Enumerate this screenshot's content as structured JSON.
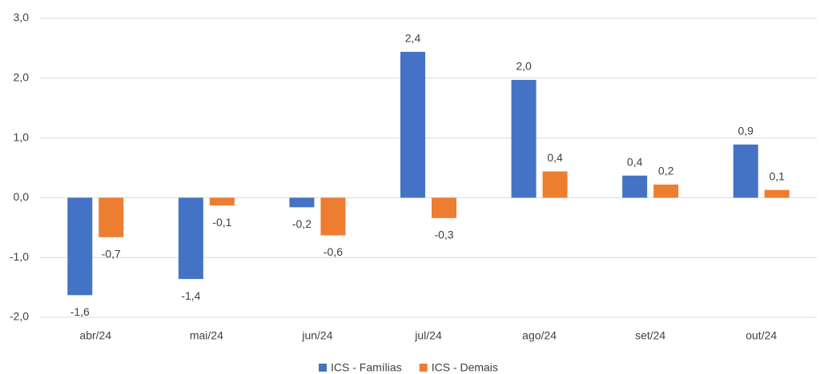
{
  "chart_data": {
    "type": "bar",
    "categories": [
      "abr/24",
      "mai/24",
      "jun/24",
      "jul/24",
      "ago/24",
      "set/24",
      "out/24"
    ],
    "series": [
      {
        "name": "ICS - Famílias",
        "color": "#4472c4",
        "values": [
          -1.63,
          -1.36,
          -0.16,
          2.44,
          1.97,
          0.37,
          0.89
        ],
        "value_labels": [
          "-1,6",
          "-1,4",
          "-0,2",
          "2,4",
          "2,0",
          "0,4",
          "0,9"
        ]
      },
      {
        "name": "ICS - Demais",
        "color": "#ed7d31",
        "values": [
          -0.66,
          -0.13,
          -0.63,
          -0.34,
          0.44,
          0.22,
          0.13
        ],
        "value_labels": [
          "-0,7",
          "-0,1",
          "-0,6",
          "-0,3",
          "0,4",
          "0,2",
          "0,1"
        ]
      }
    ],
    "ylim": [
      -2,
      3
    ],
    "yticks": [
      {
        "value": -2,
        "label": "-2,0"
      },
      {
        "value": -1,
        "label": "-1,0"
      },
      {
        "value": 0,
        "label": "0,0"
      },
      {
        "value": 1,
        "label": "1,0"
      },
      {
        "value": 2,
        "label": "2,0"
      },
      {
        "value": 3,
        "label": "3,0"
      }
    ],
    "grid": true,
    "legend": "bottom"
  }
}
